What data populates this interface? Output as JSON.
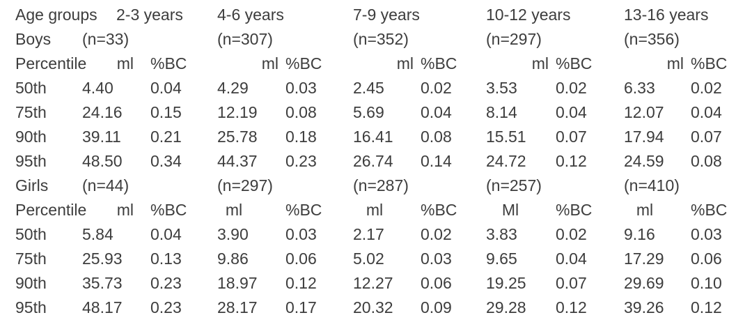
{
  "header": {
    "age_groups_label": "Age groups",
    "age_groups": [
      "2-3 years",
      "4-6 years",
      "7-9 years",
      "10-12 years",
      "13-16 years"
    ]
  },
  "boys": {
    "label": "Boys",
    "n": [
      "(n=33)",
      "(n=307)",
      "(n=352)",
      "(n=297)",
      "(n=356)"
    ],
    "percentile_label": "Percentile",
    "units": [
      [
        "ml",
        "%BC"
      ],
      [
        "ml",
        "%BC"
      ],
      [
        "ml",
        "%BC"
      ],
      [
        "ml",
        "%BC"
      ],
      [
        "ml",
        "%BC"
      ]
    ],
    "rows": [
      {
        "percentile": "50th",
        "values": [
          [
            "4.40",
            "0.04"
          ],
          [
            "4.29",
            "0.03"
          ],
          [
            "2.45",
            "0.02"
          ],
          [
            "3.53",
            "0.02"
          ],
          [
            "6.33",
            "0.02"
          ]
        ]
      },
      {
        "percentile": "75th",
        "values": [
          [
            "24.16",
            "0.15"
          ],
          [
            "12.19",
            "0.08"
          ],
          [
            "5.69",
            "0.04"
          ],
          [
            "8.14",
            "0.04"
          ],
          [
            "12.07",
            "0.04"
          ]
        ]
      },
      {
        "percentile": "90th",
        "values": [
          [
            "39.11",
            "0.21"
          ],
          [
            "25.78",
            "0.18"
          ],
          [
            "16.41",
            "0.08"
          ],
          [
            "15.51",
            "0.07"
          ],
          [
            "17.94",
            "0.07"
          ]
        ]
      },
      {
        "percentile": "95th",
        "values": [
          [
            "48.50",
            "0.34"
          ],
          [
            "44.37",
            "0.23"
          ],
          [
            "26.74",
            "0.14"
          ],
          [
            "24.72",
            "0.12"
          ],
          [
            "24.59",
            "0.08"
          ]
        ]
      }
    ]
  },
  "girls": {
    "label": "Girls",
    "n": [
      "(n=44)",
      "(n=297)",
      "(n=287)",
      "(n=257)",
      "(n=410)"
    ],
    "percentile_label": "Percentile",
    "units": [
      [
        "ml",
        "%BC"
      ],
      [
        "ml",
        "%BC"
      ],
      [
        "ml",
        "%BC"
      ],
      [
        "Ml",
        "%BC"
      ],
      [
        "ml",
        "%BC"
      ]
    ],
    "rows": [
      {
        "percentile": "50th",
        "values": [
          [
            "5.84",
            "0.04"
          ],
          [
            "3.90",
            "0.03"
          ],
          [
            "2.17",
            "0.02"
          ],
          [
            "3.83",
            "0.02"
          ],
          [
            "9.16",
            "0.03"
          ]
        ]
      },
      {
        "percentile": "75th",
        "values": [
          [
            "25.93",
            "0.13"
          ],
          [
            "9.86",
            "0.06"
          ],
          [
            "5.02",
            "0.03"
          ],
          [
            "9.65",
            "0.04"
          ],
          [
            "17.29",
            "0.06"
          ]
        ]
      },
      {
        "percentile": "90th",
        "values": [
          [
            "35.73",
            "0.23"
          ],
          [
            "18.97",
            "0.12"
          ],
          [
            "12.27",
            "0.06"
          ],
          [
            "19.25",
            "0.07"
          ],
          [
            "29.69",
            "0.10"
          ]
        ]
      },
      {
        "percentile": "95th",
        "values": [
          [
            "48.17",
            "0.23"
          ],
          [
            "28.17",
            "0.17"
          ],
          [
            "20.32",
            "0.09"
          ],
          [
            "29.28",
            "0.12"
          ],
          [
            "39.26",
            "0.12"
          ]
        ]
      }
    ]
  }
}
